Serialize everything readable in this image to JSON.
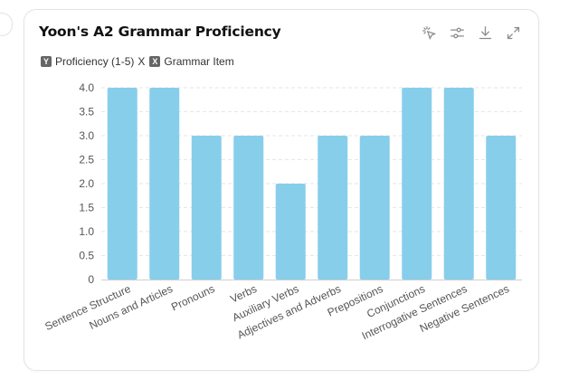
{
  "card": {
    "title": "Yoon's A2 Grammar Proficiency"
  },
  "toolbar": {
    "icons": [
      "lasso-select-icon",
      "filter-sliders-icon",
      "download-icon",
      "expand-icon"
    ]
  },
  "legend": {
    "y_badge": "Y",
    "y_label": "Proficiency (1-5)",
    "separator": "X",
    "x_badge": "X",
    "x_label": "Grammar Item"
  },
  "chart_data": {
    "type": "bar",
    "categories": [
      "Sentence Structure",
      "Nouns and Articles",
      "Pronouns",
      "Verbs",
      "Auxiliary Verbs",
      "Adjectives and Adverbs",
      "Prepositions",
      "Conjunctions",
      "Interrogative Sentences",
      "Negative Sentences"
    ],
    "series": [
      {
        "values": [
          4,
          4,
          3,
          3,
          2,
          3,
          3,
          4,
          4,
          3
        ]
      }
    ],
    "yticks": [
      "0",
      "0.5",
      "1.0",
      "1.5",
      "2.0",
      "2.5",
      "3.0",
      "3.5",
      "4.0"
    ],
    "ylim": [
      0,
      4
    ],
    "grid": true,
    "bar_color": "#87ceeb"
  }
}
